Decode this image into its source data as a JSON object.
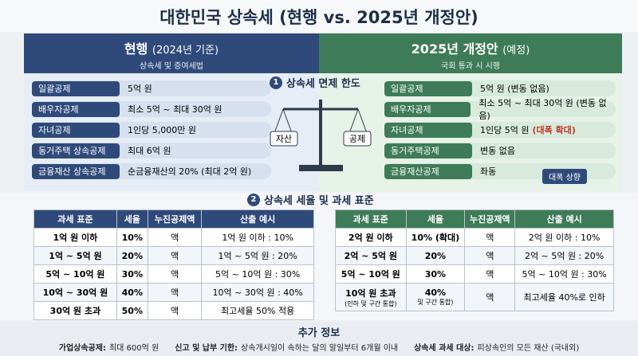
{
  "title": "대한민국 상속세 (현행 vs. 2025년 개정안)",
  "left": {
    "title": "현행",
    "title_note": "(2024년 기준)",
    "subtitle": "상속세 및 증여세법",
    "rows": [
      [
        "일괄공제",
        "5억 원"
      ],
      [
        "배우자공제",
        "최소 5억 ~ 최대 30억 원"
      ],
      [
        "자녀공제",
        "1인당 5,000만 원"
      ],
      [
        "동거주택 상속공제",
        "최대 6억 원"
      ],
      [
        "금융재산 상속공제",
        "순금융재산의 20% (최대 2억 원)"
      ]
    ]
  },
  "right": {
    "title": "2025년 개정안",
    "title_note": "(예정)",
    "subtitle": "국회 통과 시 시행",
    "rows": [
      [
        "일괄공제",
        "5억 원 (변동 없음)"
      ],
      [
        "배우자공제",
        "최소 5억 ~ 최대 30억 원 (변동 없음)"
      ],
      [
        "자녀공제",
        "1인당 5억 원"
      ],
      [
        "동거주택공제",
        "변동 없음"
      ],
      [
        "금융재산공제",
        "좌동"
      ]
    ],
    "highlight": "(대폭 확대)",
    "badge": "대폭 상향"
  },
  "section1": {
    "number": "1",
    "title": "상속세 면제 한도",
    "scale_left": "자산",
    "scale_right": "공제"
  },
  "section2": {
    "number": "2",
    "title": "상속세 세율 및 과세 표준"
  },
  "table_headers": [
    "과세 표준",
    "세율",
    "누진공제액",
    "산출 예시"
  ],
  "left_table": [
    [
      "1억 원 이하",
      "10%",
      "액",
      "1억 원 이하 : 10%"
    ],
    [
      "1억 ~ 5억 원",
      "20%",
      "액",
      "1억 ~ 5억 원 : 20%"
    ],
    [
      "5억 ~ 10억 원",
      "30%",
      "액",
      "5억 ~ 10억 원 : 30%"
    ],
    [
      "10억 ~ 30억 원",
      "40%",
      "액",
      "10억 ~ 30억 원 : 40%"
    ],
    [
      "30억 원 초과",
      "50%",
      "액",
      "최고세율 50% 적용"
    ]
  ],
  "right_table": [
    [
      "2억 원 이하",
      "10% (확대)",
      "액",
      "2억 원 이하 : 10%"
    ],
    [
      "2억 ~ 5억 원",
      "20%",
      "액",
      "2억 ~ 5억 원 : 20%"
    ],
    [
      "5억 ~ 10억 원",
      "30%",
      "액",
      "5억 ~ 10억 원 : 30%"
    ],
    [
      "10억 원 초과",
      "40%",
      "액",
      "최고세율 40%로 인하"
    ]
  ],
  "right_table_notes": [
    "(인하 및 구간 통합)",
    "및 구간 통합)"
  ],
  "footer": {
    "title": "추가 정보",
    "items": [
      [
        "가업상속공제:",
        "최대 600억 원"
      ],
      [
        "신고 및 납부 기한:",
        "상속개시일이 속하는 달의 말일부터 6개월 이내"
      ],
      [
        "상속세 과세 대상:",
        "피상속인의 모든 재산 (국내외)"
      ]
    ]
  }
}
